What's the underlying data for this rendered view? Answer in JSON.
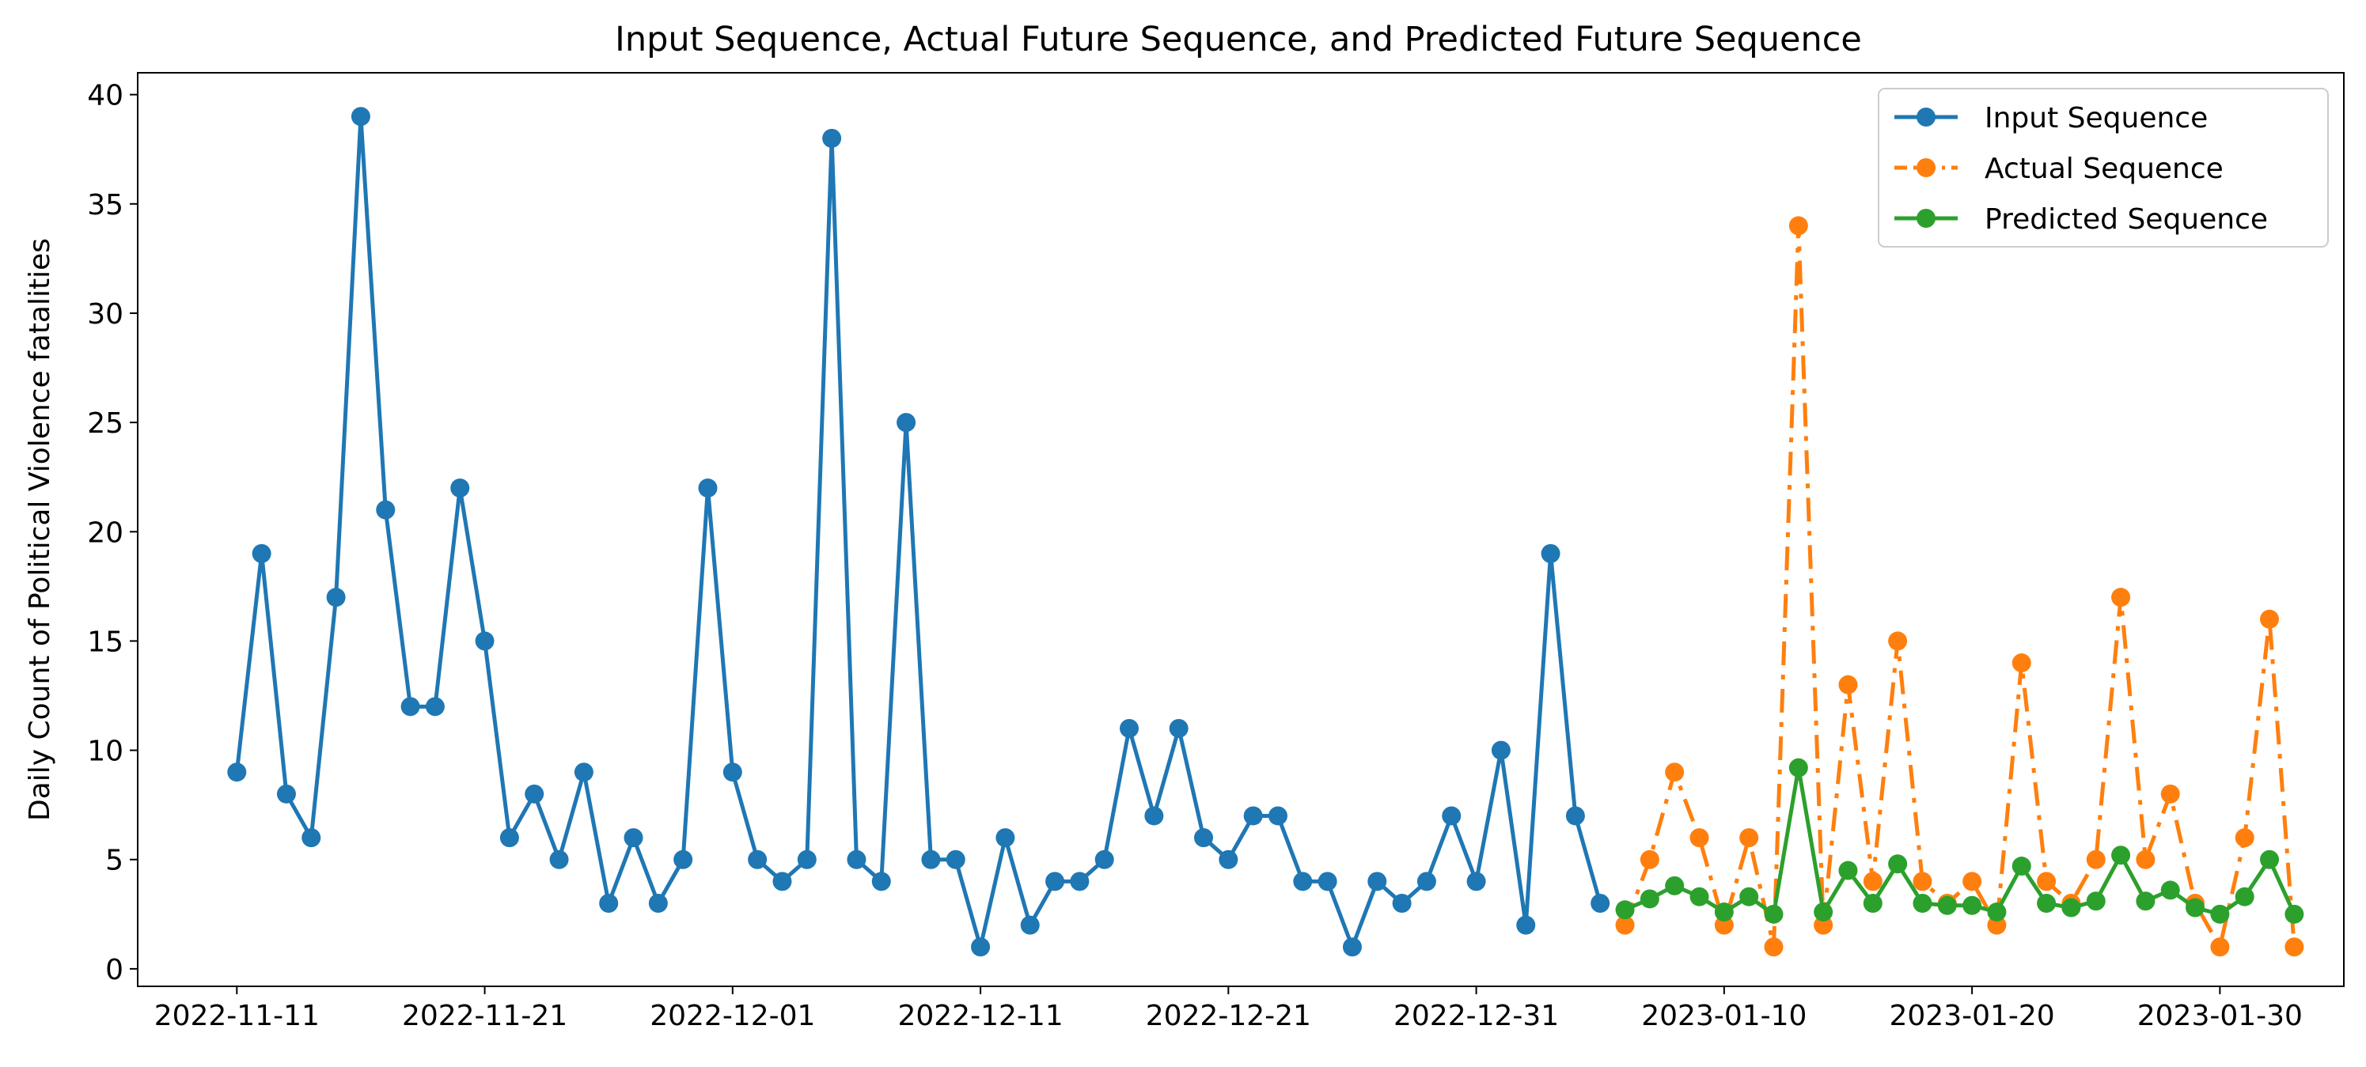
{
  "chart_data": {
    "type": "line",
    "title": "Input Sequence, Actual Future Sequence, and Predicted Future Sequence",
    "xlabel": "",
    "ylabel": "Daily Count of Political Violence fatalities",
    "x_type": "date",
    "xlim": [
      "2022-11-07",
      "2023-02-04"
    ],
    "ylim": [
      -0.8,
      41
    ],
    "x_ticks": [
      "2022-11-11",
      "2022-11-21",
      "2022-12-01",
      "2022-12-11",
      "2022-12-21",
      "2022-12-31",
      "2023-01-10",
      "2023-01-20",
      "2023-01-30"
    ],
    "y_ticks": [
      0,
      5,
      10,
      15,
      20,
      25,
      30,
      35,
      40
    ],
    "legend_position": "upper right",
    "series": [
      {
        "name": "Input Sequence",
        "color": "#1f77b4",
        "line_style": "solid",
        "marker": "circle",
        "start_date": "2022-11-11",
        "values": [
          9,
          19,
          8,
          6,
          17,
          39,
          21,
          12,
          12,
          22,
          15,
          6,
          8,
          5,
          9,
          3,
          6,
          3,
          5,
          22,
          9,
          5,
          4,
          5,
          38,
          5,
          4,
          25,
          5,
          5,
          1,
          6,
          2,
          4,
          4,
          5,
          11,
          7,
          11,
          6,
          5,
          7,
          7,
          4,
          4,
          1,
          4,
          3,
          4,
          7,
          4,
          10,
          2,
          19,
          7,
          3
        ]
      },
      {
        "name": "Actual Sequence",
        "color": "#ff7f0e",
        "line_style": "dashdot",
        "marker": "circle",
        "start_date": "2023-01-06",
        "values": [
          2,
          5,
          9,
          6,
          2,
          6,
          1,
          34,
          2,
          13,
          4,
          15,
          4,
          3,
          4,
          2,
          14,
          4,
          3,
          5,
          17,
          5,
          8,
          3,
          1,
          6,
          16,
          1
        ]
      },
      {
        "name": "Predicted Sequence",
        "color": "#2ca02c",
        "line_style": "solid",
        "marker": "circle",
        "start_date": "2023-01-06",
        "values": [
          2.7,
          3.2,
          3.8,
          3.3,
          2.6,
          3.3,
          2.5,
          9.2,
          2.6,
          4.5,
          3.0,
          4.8,
          3.0,
          2.9,
          2.9,
          2.6,
          4.7,
          3.0,
          2.8,
          3.1,
          5.2,
          3.1,
          3.6,
          2.8,
          2.5,
          3.3,
          5.0,
          2.5
        ]
      }
    ]
  }
}
